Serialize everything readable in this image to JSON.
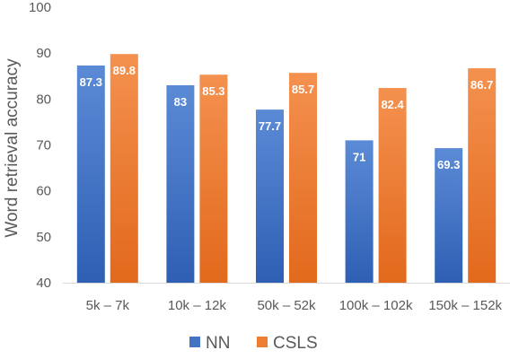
{
  "chart_data": {
    "type": "bar",
    "categories": [
      "5k – 7k",
      "10k – 12k",
      "50k – 52k",
      "100k – 102k",
      "150k – 152k"
    ],
    "series": [
      {
        "name": "NN",
        "values": [
          87.3,
          83,
          77.7,
          71,
          69.3
        ],
        "color": "#4472C4",
        "labels": [
          "87.3",
          "83",
          "77.7",
          "71",
          "69.3"
        ]
      },
      {
        "name": "CSLS",
        "values": [
          89.8,
          85.3,
          85.7,
          82.4,
          86.7
        ],
        "color": "#ED7D31",
        "labels": [
          "89.8",
          "85.3",
          "85.7",
          "82.4",
          "86.7"
        ]
      }
    ],
    "title": "",
    "xlabel": "",
    "ylabel": "Word retrieval accuracy",
    "ylim": [
      40,
      100
    ],
    "yticks": [
      "40",
      "50",
      "60",
      "70",
      "80",
      "90",
      "100"
    ],
    "grid": false,
    "legend_position": "bottom"
  }
}
